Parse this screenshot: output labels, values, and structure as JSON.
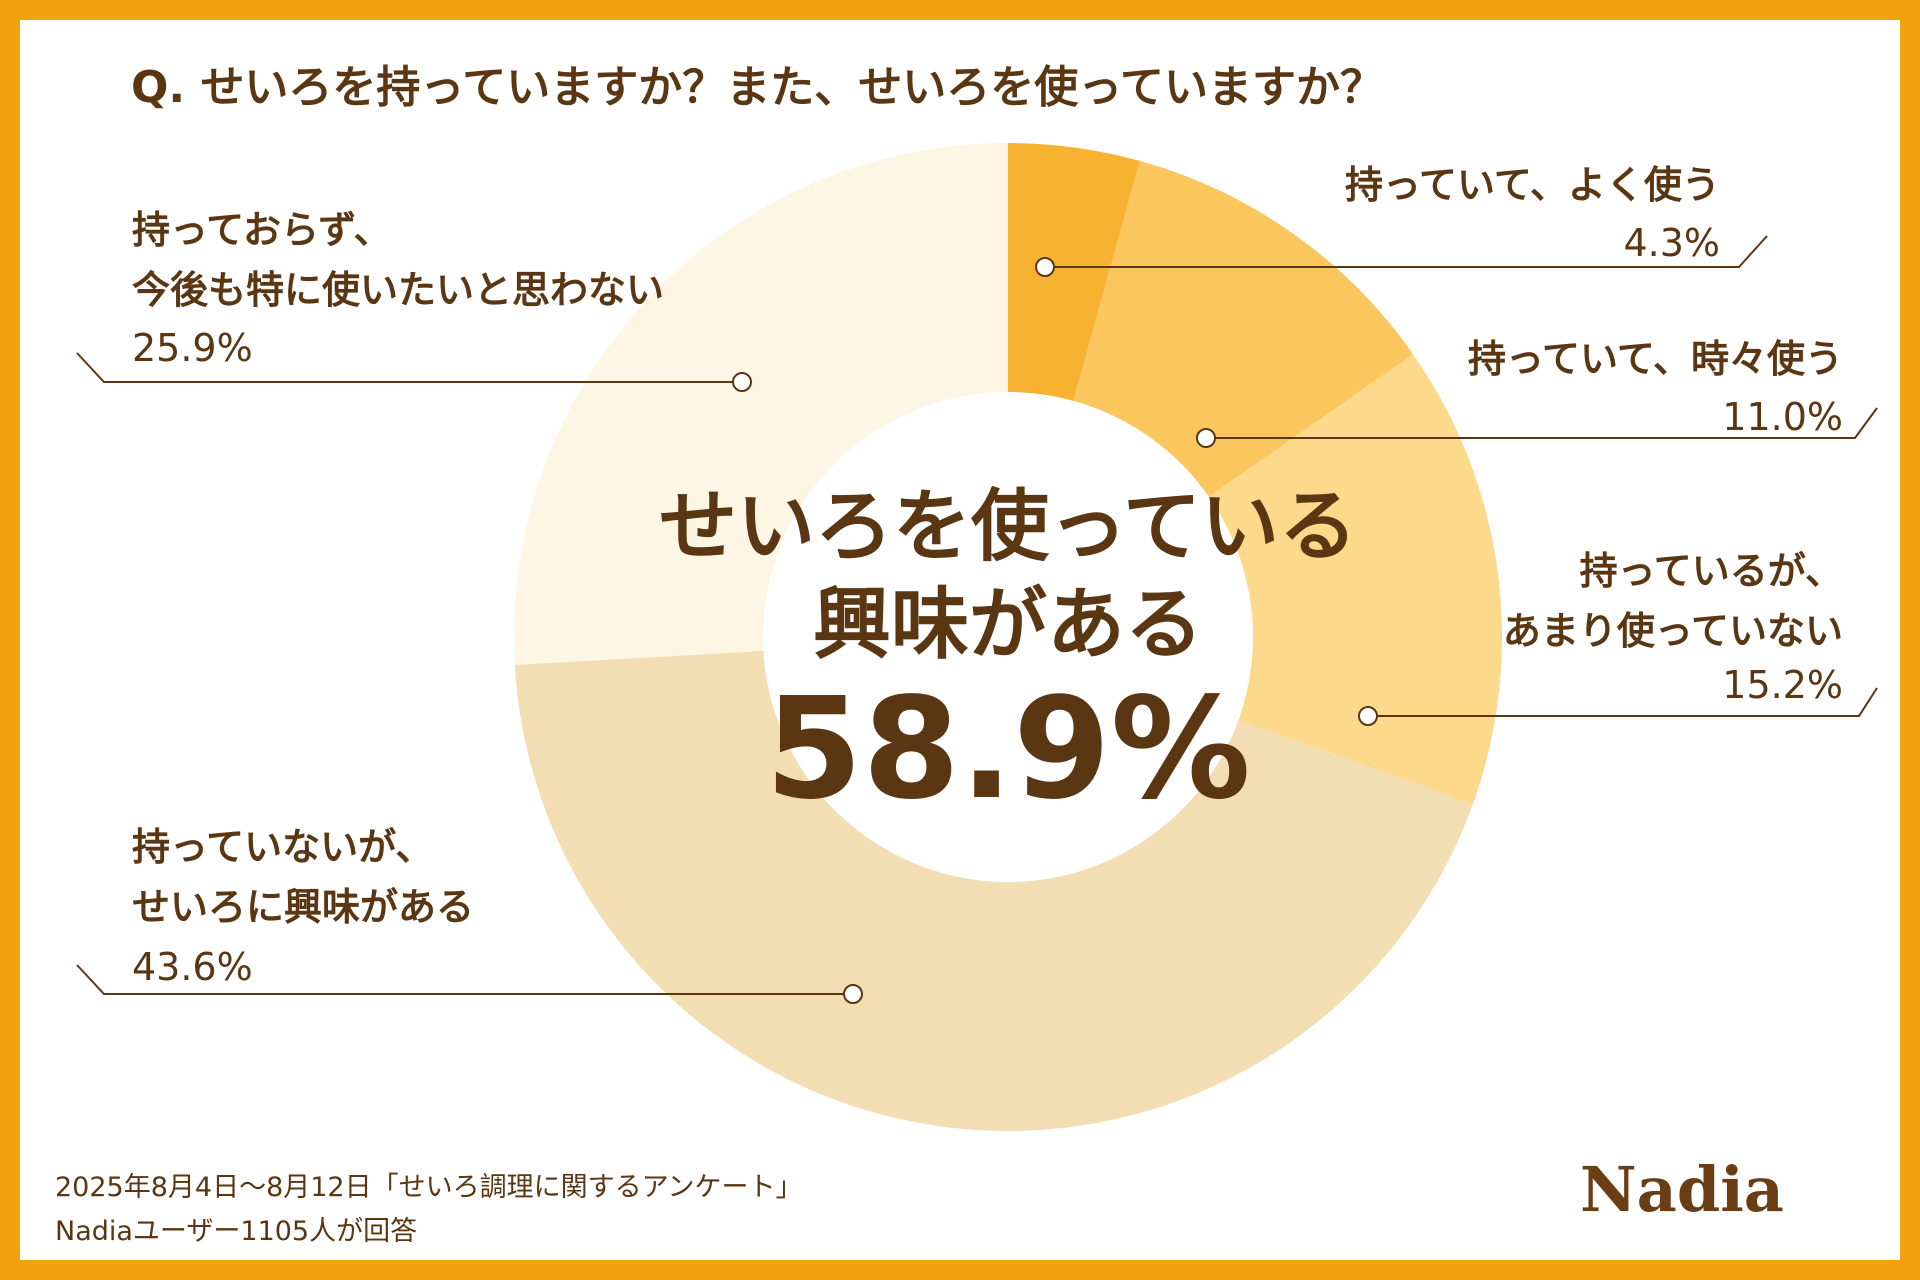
{
  "chart_data": {
    "type": "donut",
    "title": "Q. せいろを持っていますか？また、せいろを使っていますか？",
    "categories": [
      "持っていて、よく使う",
      "持っていて、時々使う",
      "持っているが、\nあまり使っていない",
      "持っていないが、\nせいろに興味がある",
      "持っておらず、\n今後も特に使いたいと思わない"
    ],
    "values": [
      4.3,
      11.0,
      15.2,
      43.6,
      25.9
    ],
    "value_labels": [
      "4.3%",
      "11.0%",
      "15.2%",
      "43.6%",
      "25.9%"
    ],
    "colors": [
      "#f8b232",
      "#fcc65e",
      "#fdd98b",
      "#f3deb4",
      "#fdf6e5"
    ],
    "center_text": "せいろを使っている\n興味がある",
    "center_value_label": "58.9%",
    "notes": [
      "2025年8月4日〜8月12日「せいろ調理に関するアンケート」",
      "Nadiaユーザー1105人が回答"
    ],
    "logo": "Nadia"
  }
}
